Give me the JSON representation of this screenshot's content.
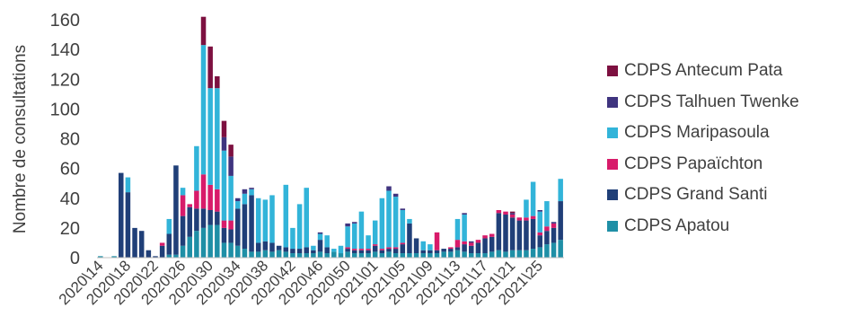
{
  "chart_data": {
    "type": "bar",
    "stacked": true,
    "title": "",
    "xlabel": "",
    "ylabel": "Nombre de consultations",
    "ylim": [
      0,
      160
    ],
    "yticks": [
      0,
      20,
      40,
      60,
      80,
      100,
      120,
      140,
      160
    ],
    "grid": false,
    "legend_position": "right",
    "categories": [
      "2020\\14",
      "2020\\15",
      "2020\\16",
      "2020\\17",
      "2020\\18",
      "2020\\19",
      "2020\\20",
      "2020\\21",
      "2020\\22",
      "2020\\23",
      "2020\\24",
      "2020\\25",
      "2020\\26",
      "2020\\27",
      "2020\\28",
      "2020\\29",
      "2020\\30",
      "2020\\31",
      "2020\\32",
      "2020\\33",
      "2020\\34",
      "2020\\35",
      "2020\\36",
      "2020\\37",
      "2020\\38",
      "2020\\39",
      "2020\\40",
      "2020\\41",
      "2020\\42",
      "2020\\43",
      "2020\\44",
      "2020\\45",
      "2020\\46",
      "2020\\47",
      "2020\\48",
      "2020\\49",
      "2020\\50",
      "2020\\51",
      "2020\\52",
      "2020\\53",
      "2021\\01",
      "2021\\02",
      "2021\\03",
      "2021\\04",
      "2021\\05",
      "2021\\06",
      "2021\\07",
      "2021\\08",
      "2021\\09",
      "2021\\10",
      "2021\\11",
      "2021\\12",
      "2021\\13",
      "2021\\14",
      "2021\\15",
      "2021\\16",
      "2021\\17",
      "2021\\18",
      "2021\\19",
      "2021\\20",
      "2021\\21",
      "2021\\22",
      "2021\\23",
      "2021\\24",
      "2021\\25",
      "2021\\26",
      "2021\\27",
      "2021\\28"
    ],
    "tick_labels": [
      "2020\\14",
      "2020\\18",
      "2020\\22",
      "2020\\26",
      "2020\\30",
      "2020\\34",
      "2020\\38",
      "2020\\42",
      "2020\\46",
      "2020\\50",
      "2021\\01",
      "2021\\05",
      "2021\\09",
      "2021\\13",
      "2021\\17",
      "2021\\21",
      "2021\\25"
    ],
    "series": [
      {
        "name": "CDPS Apatou",
        "color": "#1f8fa6",
        "values": [
          1,
          0,
          1,
          0,
          0,
          0,
          0,
          0,
          0,
          0,
          2,
          2,
          8,
          14,
          18,
          20,
          22,
          22,
          10,
          10,
          8,
          6,
          4,
          4,
          5,
          4,
          5,
          4,
          3,
          3,
          3,
          3,
          4,
          3,
          4,
          3,
          4,
          3,
          3,
          3,
          4,
          3,
          4,
          3,
          3,
          3,
          3,
          3,
          3,
          3,
          4,
          4,
          5,
          4,
          3,
          3,
          3,
          4,
          5,
          4,
          5,
          5,
          5,
          6,
          7,
          9,
          10,
          12
        ]
      },
      {
        "name": "CDPS Grand Santi",
        "color": "#203f78",
        "values": [
          0,
          0,
          0,
          57,
          44,
          20,
          18,
          5,
          1,
          8,
          14,
          60,
          20,
          20,
          15,
          13,
          10,
          9,
          10,
          9,
          25,
          30,
          38,
          6,
          6,
          6,
          3,
          3,
          3,
          3,
          4,
          2,
          8,
          4,
          0,
          0,
          2,
          2,
          2,
          2,
          4,
          2,
          2,
          3,
          6,
          20,
          10,
          2,
          2,
          2,
          2,
          2,
          2,
          5,
          5,
          7,
          10,
          10,
          25,
          25,
          22,
          20,
          20,
          20,
          8,
          9,
          10,
          26
        ]
      },
      {
        "name": "CDPS Papaïchton",
        "color": "#d81b6a",
        "values": [
          0,
          0,
          0,
          0,
          0,
          0,
          0,
          0,
          0,
          2,
          0,
          0,
          14,
          2,
          12,
          23,
          17,
          15,
          5,
          6,
          0,
          0,
          0,
          0,
          0,
          0,
          0,
          0,
          0,
          0,
          0,
          0,
          0,
          0,
          0,
          0,
          1,
          1,
          1,
          1,
          1,
          1,
          1,
          1,
          1,
          0,
          0,
          0,
          0,
          12,
          0,
          1,
          5,
          2,
          2,
          2,
          2,
          2,
          2,
          2,
          2,
          2,
          2,
          2,
          2,
          3,
          3,
          0
        ]
      },
      {
        "name": "CDPS Maripasoula",
        "color": "#32b4d9",
        "values": [
          0,
          0,
          0,
          0,
          10,
          0,
          0,
          0,
          0,
          0,
          10,
          0,
          5,
          0,
          30,
          87,
          65,
          68,
          47,
          30,
          5,
          7,
          4,
          30,
          28,
          32,
          0,
          42,
          14,
          30,
          40,
          3,
          4,
          8,
          2,
          5,
          14,
          17,
          25,
          9,
          16,
          34,
          38,
          34,
          22,
          3,
          0,
          6,
          4,
          0,
          0,
          0,
          14,
          18,
          0,
          0,
          0,
          0,
          0,
          0,
          0,
          0,
          12,
          23,
          14,
          17,
          0,
          15
        ]
      },
      {
        "name": "CDPS Talhuen Twenke",
        "color": "#3f347f",
        "values": [
          0,
          0,
          0,
          0,
          0,
          0,
          0,
          0,
          0,
          0,
          0,
          0,
          0,
          0,
          0,
          0,
          0,
          0,
          9,
          13,
          2,
          3,
          1,
          0,
          0,
          0,
          0,
          0,
          0,
          0,
          0,
          0,
          1,
          0,
          0,
          0,
          2,
          1,
          0,
          0,
          0,
          0,
          3,
          2,
          1,
          0,
          0,
          0,
          0,
          0,
          0,
          0,
          0,
          1,
          1,
          0,
          0,
          0,
          0,
          0,
          1,
          0,
          0,
          0,
          1,
          0,
          1,
          0
        ]
      },
      {
        "name": "CDPS Antecum Pata",
        "color": "#7d1040",
        "values": [
          0,
          0,
          0,
          0,
          0,
          0,
          0,
          0,
          0,
          0,
          0,
          0,
          0,
          0,
          0,
          19,
          28,
          8,
          11,
          8,
          0,
          0,
          0,
          0,
          0,
          0,
          0,
          0,
          0,
          0,
          0,
          0,
          0,
          0,
          0,
          0,
          0,
          0,
          0,
          0,
          0,
          0,
          0,
          0,
          0,
          0,
          0,
          0,
          0,
          0,
          0,
          0,
          0,
          0,
          0,
          0,
          0,
          0,
          0,
          0,
          1,
          0,
          0,
          0,
          0,
          0,
          0,
          0
        ]
      }
    ],
    "legend_order": [
      "CDPS Antecum Pata",
      "CDPS Talhuen Twenke",
      "CDPS Maripasoula",
      "CDPS Papaïchton",
      "CDPS Grand Santi",
      "CDPS Apatou"
    ]
  }
}
